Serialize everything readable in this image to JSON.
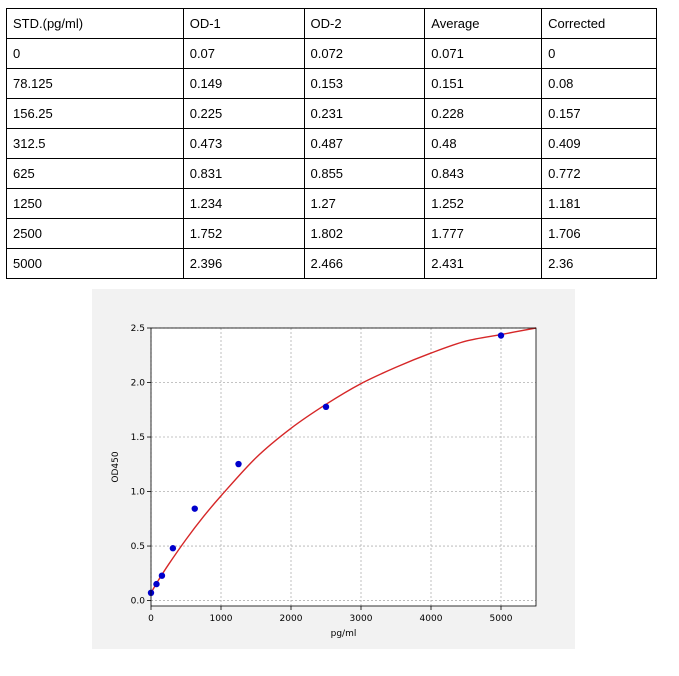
{
  "table": {
    "headers": [
      "STD.(pg/ml)",
      "OD-1",
      "OD-2",
      "Average",
      "Corrected"
    ],
    "rows": [
      [
        "0",
        "0.07",
        "0.072",
        "0.071",
        "0"
      ],
      [
        "78.125",
        "0.149",
        "0.153",
        "0.151",
        "0.08"
      ],
      [
        "156.25",
        "0.225",
        "0.231",
        "0.228",
        "0.157"
      ],
      [
        "312.5",
        "0.473",
        "0.487",
        "0.48",
        "0.409"
      ],
      [
        "625",
        "0.831",
        "0.855",
        "0.843",
        "0.772"
      ],
      [
        "1250",
        "1.234",
        "1.27",
        "1.252",
        "1.181"
      ],
      [
        "2500",
        "1.752",
        "1.802",
        "1.777",
        "1.706"
      ],
      [
        "5000",
        "2.396",
        "2.466",
        "2.431",
        "2.36"
      ]
    ]
  },
  "chart_data": {
    "type": "scatter",
    "xlabel": "pg/ml",
    "ylabel": "OD450",
    "xlim": [
      0,
      5500
    ],
    "ylim": [
      -0.05,
      2.5
    ],
    "xticks": [
      0,
      1000,
      2000,
      3000,
      4000,
      5000
    ],
    "xtick_labels": [
      "0",
      "1000",
      "2000",
      "3000",
      "4000",
      "5000"
    ],
    "yticks": [
      0.0,
      0.5,
      1.0,
      1.5,
      2.0,
      2.5
    ],
    "ytick_labels": [
      "0.0",
      "0.5",
      "1.0",
      "1.5",
      "2.0",
      "2.5"
    ],
    "grid": true,
    "points": {
      "x": [
        0,
        78.125,
        156.25,
        312.5,
        625,
        1250,
        2500,
        5000
      ],
      "y": [
        0.071,
        0.151,
        0.228,
        0.48,
        0.843,
        1.252,
        1.777,
        2.431
      ],
      "color": "#0000cc"
    },
    "fit_curve": {
      "x": [
        0,
        100,
        250,
        500,
        750,
        1000,
        1500,
        2000,
        2500,
        3000,
        3500,
        4000,
        4500,
        5000,
        5500
      ],
      "y": [
        0.07,
        0.18,
        0.33,
        0.56,
        0.77,
        0.96,
        1.31,
        1.58,
        1.8,
        1.99,
        2.14,
        2.27,
        2.38,
        2.44,
        2.5
      ],
      "color": "#d62728"
    },
    "panel_color": "#f2f2f2",
    "axes_color": "#ffffff"
  }
}
